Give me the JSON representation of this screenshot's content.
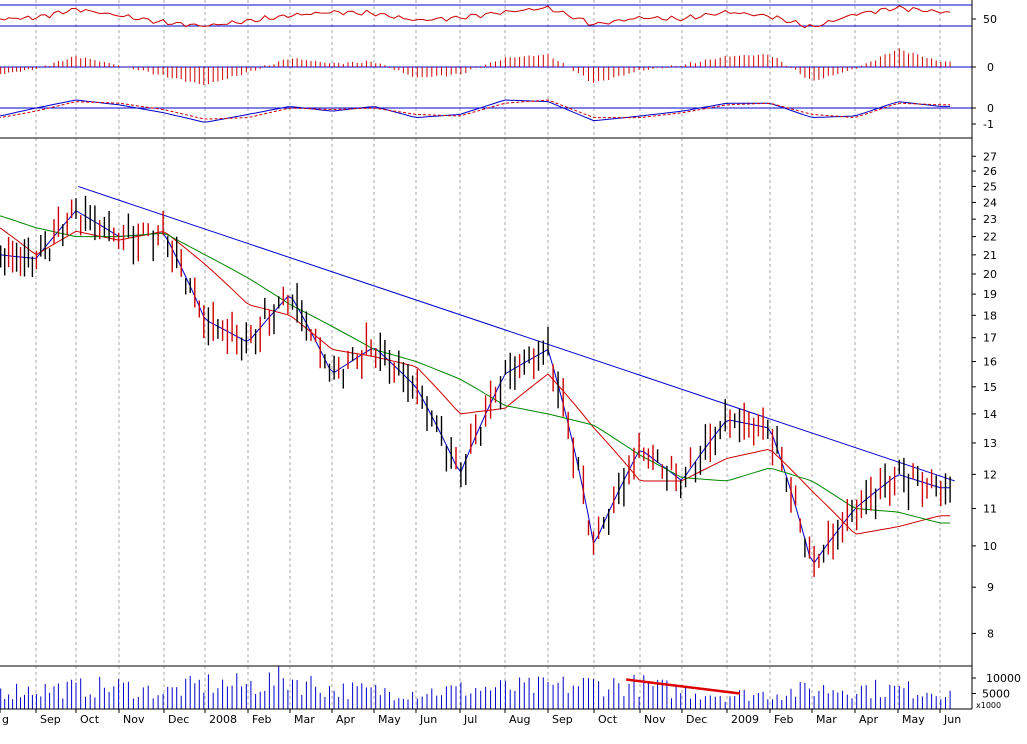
{
  "colors": {
    "up": "#000000",
    "down": "#cc0000",
    "ma_fast": "#0000cc",
    "ma_mid": "#cc0000",
    "ma_slow": "#008800",
    "trendline": "#0000cc",
    "volume": "#0000cc",
    "volume_trend": "#dd0000",
    "rsi": "#cc0000",
    "macd_hist": "#cc0000",
    "macd_line": "#0000cc",
    "macd_signal": "#cc0000",
    "grid": "#aaaaaa"
  },
  "chart_data": [
    {
      "type": "line",
      "panel": "rsi",
      "ylim": [
        20,
        70
      ],
      "yticks": [
        "50"
      ],
      "reference_levels": [
        70,
        40
      ],
      "x": [
        "2007-08",
        "2007-09",
        "2007-10",
        "2007-11",
        "2007-12",
        "2008-01",
        "2008-02",
        "2008-03",
        "2008-04",
        "2008-05",
        "2008-06",
        "2008-07",
        "2008-08",
        "2008-09",
        "2008-10",
        "2008-11",
        "2008-12",
        "2009-01",
        "2009-02",
        "2009-03",
        "2009-04",
        "2009-05",
        "2009-06"
      ],
      "series": [
        {
          "values": [
            50,
            52,
            64,
            55,
            45,
            40,
            47,
            55,
            60,
            58,
            48,
            52,
            60,
            66,
            42,
            52,
            50,
            60,
            54,
            38,
            57,
            66,
            60
          ]
        }
      ]
    },
    {
      "type": "bar",
      "panel": "macd_histogram",
      "yticks": [
        "0"
      ],
      "x": [
        "2007-08",
        "2007-09",
        "2007-10",
        "2007-11",
        "2007-12",
        "2008-01",
        "2008-02",
        "2008-03",
        "2008-04",
        "2008-05",
        "2008-06",
        "2008-07",
        "2008-08",
        "2008-09",
        "2008-10",
        "2008-11",
        "2008-12",
        "2009-01",
        "2009-02",
        "2009-03",
        "2009-04",
        "2009-05",
        "2009-06"
      ],
      "values": [
        -0.4,
        -0.1,
        0.6,
        0.1,
        -0.5,
        -1.0,
        -0.3,
        0.5,
        0.2,
        0.3,
        -0.6,
        -0.4,
        0.5,
        0.7,
        -0.9,
        -0.2,
        0.1,
        0.6,
        0.7,
        -0.8,
        -0.1,
        1.0,
        0.3
      ]
    },
    {
      "type": "line",
      "panel": "macd",
      "yticks": [
        "0",
        "-1"
      ],
      "x": [
        "2007-08",
        "2007-09",
        "2007-10",
        "2007-11",
        "2007-12",
        "2008-01",
        "2008-02",
        "2008-03",
        "2008-04",
        "2008-05",
        "2008-06",
        "2008-07",
        "2008-08",
        "2008-09",
        "2008-10",
        "2008-11",
        "2008-12",
        "2009-01",
        "2009-02",
        "2009-03",
        "2009-04",
        "2009-05",
        "2009-06"
      ],
      "series": [
        {
          "values": [
            -0.5,
            0.0,
            0.5,
            0.2,
            -0.3,
            -0.9,
            -0.4,
            0.1,
            -0.2,
            0.1,
            -0.6,
            -0.4,
            0.5,
            0.4,
            -0.8,
            -0.5,
            -0.2,
            0.3,
            0.3,
            -0.6,
            -0.5,
            0.4,
            0.1
          ]
        },
        {
          "values": [
            -0.6,
            -0.2,
            0.4,
            0.3,
            -0.1,
            -0.7,
            -0.6,
            0.0,
            -0.1,
            0.0,
            -0.4,
            -0.5,
            0.3,
            0.5,
            -0.6,
            -0.6,
            -0.3,
            0.2,
            0.3,
            -0.4,
            -0.6,
            0.3,
            0.2
          ]
        }
      ]
    },
    {
      "type": "line",
      "panel": "price",
      "yscale": "log",
      "ylim": [
        7.4,
        28
      ],
      "yticks": [
        "27",
        "26",
        "25",
        "24",
        "23",
        "22",
        "21",
        "20",
        "19",
        "18",
        "17",
        "16",
        "15",
        "14",
        "13",
        "12",
        "11",
        "10",
        "9",
        "8"
      ],
      "x": [
        "2007-08",
        "2007-09",
        "2007-10",
        "2007-11",
        "2007-12",
        "2008-01",
        "2008-02",
        "2008-03",
        "2008-04",
        "2008-05",
        "2008-06",
        "2008-07",
        "2008-08",
        "2008-09",
        "2008-10",
        "2008-11",
        "2008-12",
        "2009-01",
        "2009-02",
        "2009-03",
        "2009-04",
        "2009-05",
        "2009-06"
      ],
      "series": [
        {
          "values": [
            21.0,
            20.8,
            23.5,
            22.0,
            22.2,
            17.8,
            16.8,
            19.0,
            15.5,
            16.6,
            15.0,
            12.0,
            15.5,
            16.5,
            10.0,
            12.8,
            11.8,
            13.8,
            13.5,
            9.5,
            11.0,
            12.0,
            11.6
          ]
        },
        {
          "values": [
            22.5,
            21.0,
            22.3,
            21.8,
            22.3,
            20.5,
            18.5,
            18.0,
            16.5,
            16.2,
            15.8,
            14.0,
            14.2,
            15.5,
            13.5,
            11.8,
            11.8,
            12.5,
            12.8,
            11.5,
            10.3,
            10.5,
            10.8
          ]
        },
        {
          "values": [
            23.2,
            22.5,
            22.0,
            22.0,
            22.2,
            21.0,
            19.8,
            18.5,
            17.5,
            16.5,
            16.0,
            15.3,
            14.3,
            14.0,
            13.6,
            12.6,
            11.9,
            11.8,
            12.2,
            11.8,
            11.0,
            10.9,
            10.6
          ]
        }
      ],
      "trendline": [
        [
          "2007-10",
          25.0
        ],
        [
          "2009-06",
          11.8
        ]
      ],
      "range": {
        "min": 8.1,
        "max": 25.0
      }
    },
    {
      "type": "bar",
      "panel": "volume",
      "yticks": [
        "10000",
        "5000"
      ],
      "unit_label": "x1000",
      "x": [
        "2007-08",
        "2007-09",
        "2007-10",
        "2007-11",
        "2007-12",
        "2008-01",
        "2008-02",
        "2008-03",
        "2008-04",
        "2008-05",
        "2008-06",
        "2008-07",
        "2008-08",
        "2008-09",
        "2008-10",
        "2008-11",
        "2008-12",
        "2009-01",
        "2009-02",
        "2009-03",
        "2009-04",
        "2009-05",
        "2009-06"
      ],
      "values": [
        6500,
        7000,
        7500,
        8000,
        6000,
        9000,
        8500,
        11000,
        7000,
        6500,
        6000,
        7000,
        7500,
        8000,
        9000,
        8500,
        6500,
        5000,
        5500,
        7000,
        7500,
        7000,
        6500
      ],
      "trendline": [
        [
          "2008-10",
          9500
        ],
        [
          "2009-01",
          5000
        ]
      ]
    }
  ],
  "x_axis": {
    "month_labels": [
      {
        "label": "g",
        "date": "2007-08"
      },
      {
        "label": "Sep",
        "date": "2007-09"
      },
      {
        "label": "Oct",
        "date": "2007-10"
      },
      {
        "label": "Nov",
        "date": "2007-11"
      },
      {
        "label": "Dec",
        "date": "2007-12"
      },
      {
        "label": "2008",
        "date": "2008-01"
      },
      {
        "label": "Feb",
        "date": "2008-02"
      },
      {
        "label": "Mar",
        "date": "2008-03"
      },
      {
        "label": "Apr",
        "date": "2008-04"
      },
      {
        "label": "May",
        "date": "2008-05"
      },
      {
        "label": "Jun",
        "date": "2008-06"
      },
      {
        "label": "Jul",
        "date": "2008-07"
      },
      {
        "label": "Aug",
        "date": "2008-08"
      },
      {
        "label": "Sep",
        "date": "2008-09"
      },
      {
        "label": "Oct",
        "date": "2008-10"
      },
      {
        "label": "Nov",
        "date": "2008-11"
      },
      {
        "label": "Dec",
        "date": "2008-12"
      },
      {
        "label": "2009",
        "date": "2009-01"
      },
      {
        "label": "Feb",
        "date": "2009-02"
      },
      {
        "label": "Mar",
        "date": "2009-03"
      },
      {
        "label": "Apr",
        "date": "2009-04"
      },
      {
        "label": "May",
        "date": "2009-05"
      },
      {
        "label": "Jun",
        "date": "2009-06"
      }
    ]
  }
}
